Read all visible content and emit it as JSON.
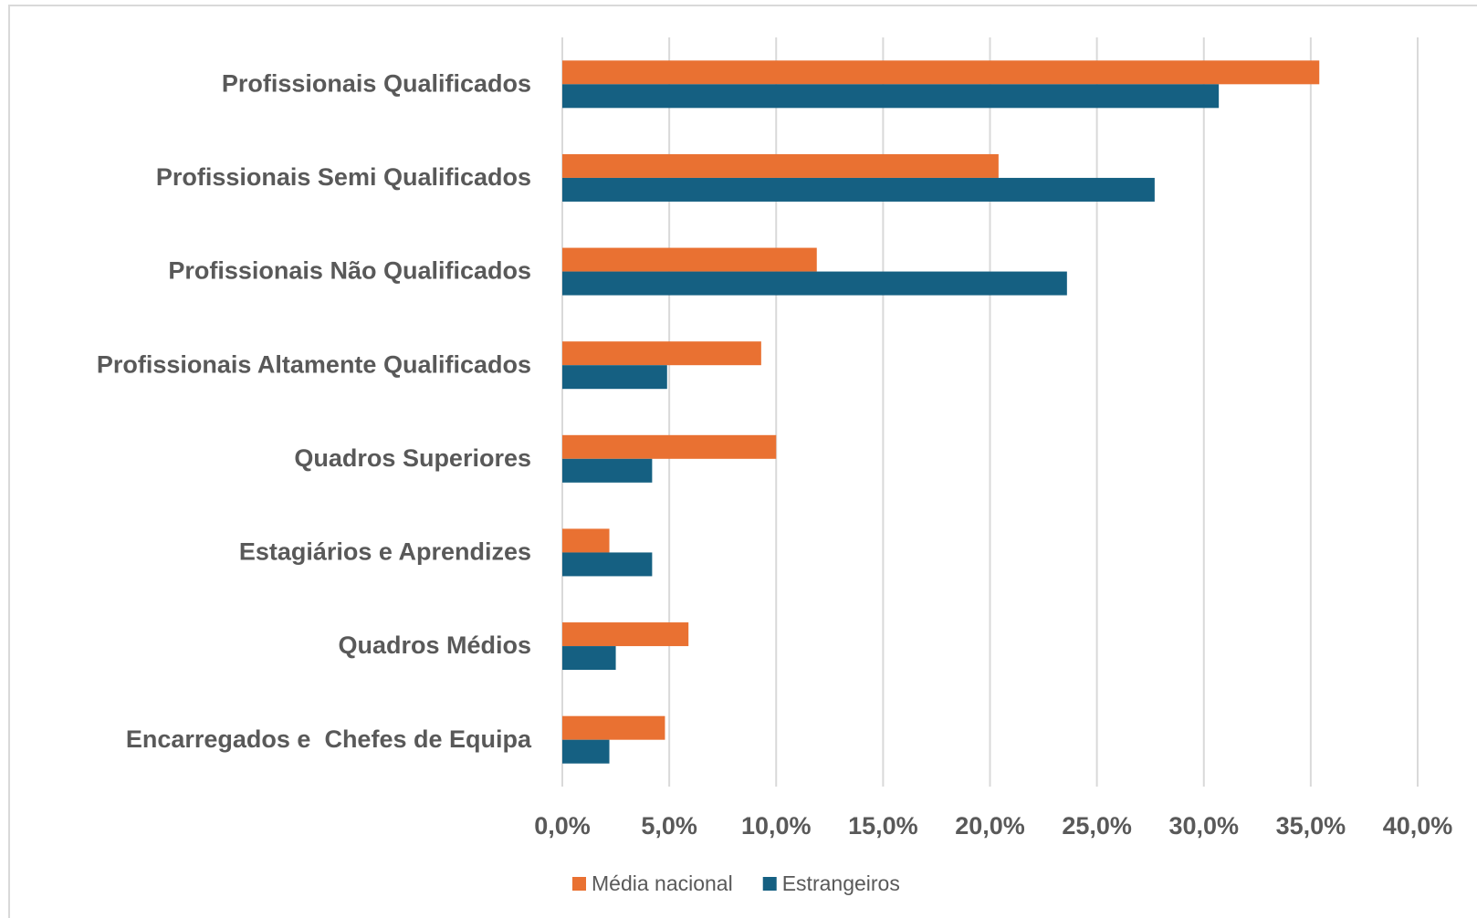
{
  "chart_data": {
    "type": "bar",
    "orientation": "horizontal",
    "categories": [
      "Profissionais Qualificados",
      "Profissionais Semi Qualificados",
      "Profissionais Não Qualificados",
      "Profissionais Altamente Qualificados",
      "Quadros Superiores",
      "Estagiários e Aprendizes",
      "Quadros Médios",
      "Encarregados e  Chefes de Equipa"
    ],
    "series": [
      {
        "name": "Média nacional",
        "color": "#e97132",
        "values": [
          35.4,
          20.4,
          11.9,
          9.3,
          10.0,
          2.2,
          5.9,
          4.8
        ]
      },
      {
        "name": "Estrangeiros",
        "color": "#156082",
        "values": [
          30.7,
          27.7,
          23.6,
          4.9,
          4.2,
          4.2,
          2.5,
          2.2
        ]
      }
    ],
    "xlim": [
      0,
      40
    ],
    "xticks": [
      {
        "value": 0,
        "label": "0,0%"
      },
      {
        "value": 5,
        "label": "5,0%"
      },
      {
        "value": 10,
        "label": "10,0%"
      },
      {
        "value": 15,
        "label": "15,0%"
      },
      {
        "value": 20,
        "label": "20,0%"
      },
      {
        "value": 25,
        "label": "25,0%"
      },
      {
        "value": 30,
        "label": "30,0%"
      },
      {
        "value": 35,
        "label": "35,0%"
      },
      {
        "value": 40,
        "label": "40,0%"
      }
    ],
    "grid": true,
    "legend": "bottom"
  }
}
